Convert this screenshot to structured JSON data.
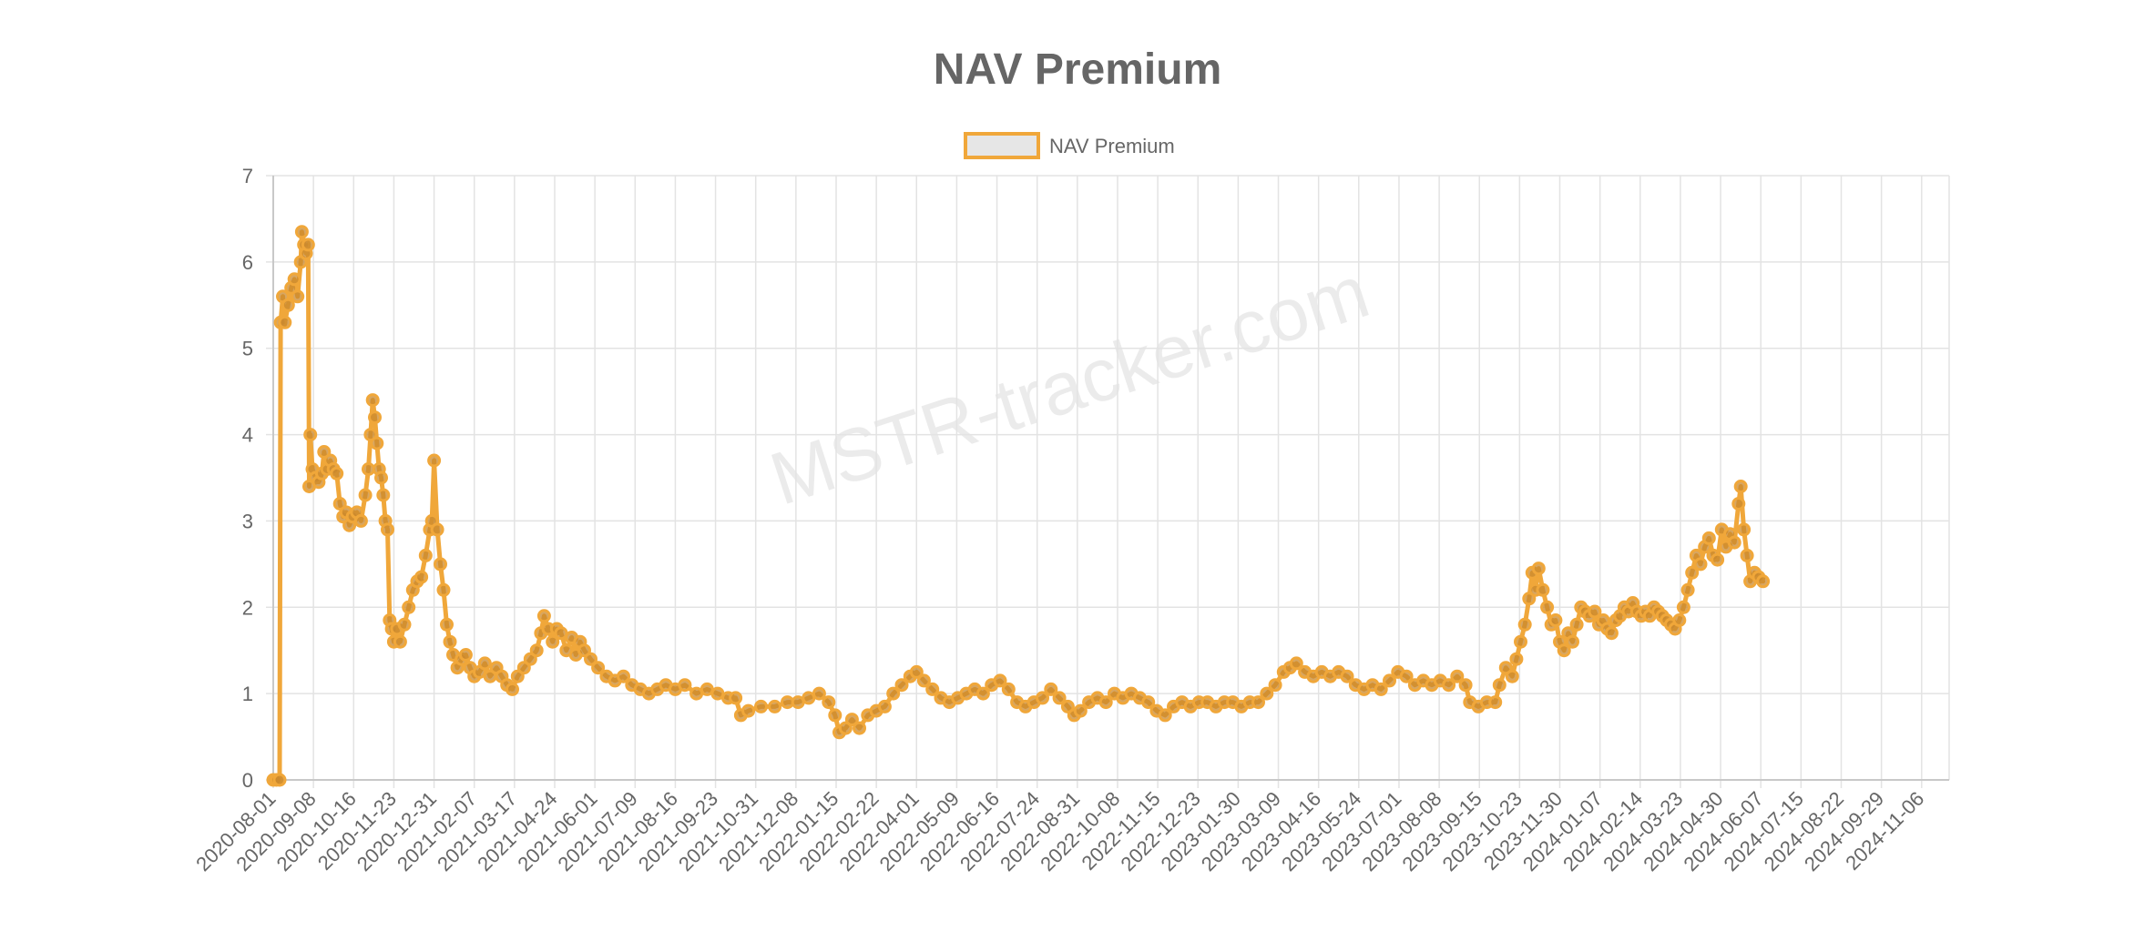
{
  "chart_data": {
    "type": "line",
    "title": "NAV Premium",
    "watermark": "MSTR-tracker.com",
    "legend": {
      "position": "top",
      "entries": [
        "NAV Premium"
      ]
    },
    "xlabel": "",
    "ylabel": "",
    "ylim": [
      0,
      7
    ],
    "y_ticks": [
      0,
      1,
      2,
      3,
      4,
      5,
      6,
      7
    ],
    "grid": true,
    "x_tick_labels": [
      "2020-08-01",
      "2020-09-08",
      "2020-10-16",
      "2020-11-23",
      "2020-12-31",
      "2021-02-07",
      "2021-03-17",
      "2021-04-24",
      "2021-06-01",
      "2021-07-09",
      "2021-08-16",
      "2021-09-23",
      "2021-10-31",
      "2021-12-08",
      "2022-01-15",
      "2022-02-22",
      "2022-04-01",
      "2022-05-09",
      "2022-06-16",
      "2022-07-24",
      "2022-08-31",
      "2022-10-08",
      "2022-11-15",
      "2022-12-23",
      "2023-01-30",
      "2023-03-09",
      "2023-04-16",
      "2023-05-24",
      "2023-07-01",
      "2023-08-08",
      "2023-09-15",
      "2023-10-23",
      "2023-11-30",
      "2024-01-07",
      "2024-02-14",
      "2024-03-23",
      "2024-04-30",
      "2024-06-07",
      "2024-07-15",
      "2024-08-22",
      "2024-09-29",
      "2024-11-06"
    ],
    "x_range": [
      "2020-08-01",
      "2024-12-02"
    ],
    "series": [
      {
        "name": "NAV Premium",
        "color": "#f0a73a",
        "fill": "#e6e6e6",
        "points": [
          [
            "2020-08-01",
            0.0
          ],
          [
            "2020-08-04",
            0.0
          ],
          [
            "2020-08-07",
            0.0
          ],
          [
            "2020-08-08",
            5.3
          ],
          [
            "2020-08-10",
            5.6
          ],
          [
            "2020-08-12",
            5.3
          ],
          [
            "2020-08-15",
            5.5
          ],
          [
            "2020-08-18",
            5.7
          ],
          [
            "2020-08-21",
            5.8
          ],
          [
            "2020-08-24",
            5.6
          ],
          [
            "2020-08-27",
            6.0
          ],
          [
            "2020-08-28",
            6.35
          ],
          [
            "2020-08-30",
            6.2
          ],
          [
            "2020-09-01",
            6.1
          ],
          [
            "2020-09-03",
            6.2
          ],
          [
            "2020-09-04",
            3.4
          ],
          [
            "2020-09-05",
            4.0
          ],
          [
            "2020-09-07",
            3.6
          ],
          [
            "2020-09-10",
            3.5
          ],
          [
            "2020-09-13",
            3.45
          ],
          [
            "2020-09-16",
            3.55
          ],
          [
            "2020-09-18",
            3.8
          ],
          [
            "2020-09-21",
            3.6
          ],
          [
            "2020-09-24",
            3.7
          ],
          [
            "2020-09-27",
            3.6
          ],
          [
            "2020-09-30",
            3.55
          ],
          [
            "2020-10-03",
            3.2
          ],
          [
            "2020-10-06",
            3.05
          ],
          [
            "2020-10-09",
            3.1
          ],
          [
            "2020-10-12",
            2.95
          ],
          [
            "2020-10-15",
            3.05
          ],
          [
            "2020-10-19",
            3.1
          ],
          [
            "2020-10-23",
            3.0
          ],
          [
            "2020-10-27",
            3.3
          ],
          [
            "2020-10-30",
            3.6
          ],
          [
            "2020-11-01",
            4.0
          ],
          [
            "2020-11-03",
            4.4
          ],
          [
            "2020-11-05",
            4.2
          ],
          [
            "2020-11-07",
            3.9
          ],
          [
            "2020-11-09",
            3.6
          ],
          [
            "2020-11-11",
            3.5
          ],
          [
            "2020-11-13",
            3.3
          ],
          [
            "2020-11-15",
            3.0
          ],
          [
            "2020-11-17",
            2.9
          ],
          [
            "2020-11-19",
            1.85
          ],
          [
            "2020-11-21",
            1.75
          ],
          [
            "2020-11-23",
            1.6
          ],
          [
            "2020-11-26",
            1.75
          ],
          [
            "2020-11-29",
            1.6
          ],
          [
            "2020-12-03",
            1.8
          ],
          [
            "2020-12-07",
            2.0
          ],
          [
            "2020-12-11",
            2.2
          ],
          [
            "2020-12-15",
            2.3
          ],
          [
            "2020-12-19",
            2.35
          ],
          [
            "2020-12-23",
            2.6
          ],
          [
            "2020-12-27",
            2.9
          ],
          [
            "2020-12-29",
            3.0
          ],
          [
            "2020-12-31",
            3.7
          ],
          [
            "2021-01-03",
            2.9
          ],
          [
            "2021-01-06",
            2.5
          ],
          [
            "2021-01-09",
            2.2
          ],
          [
            "2021-01-12",
            1.8
          ],
          [
            "2021-01-15",
            1.6
          ],
          [
            "2021-01-18",
            1.45
          ],
          [
            "2021-01-22",
            1.3
          ],
          [
            "2021-01-26",
            1.4
          ],
          [
            "2021-01-30",
            1.45
          ],
          [
            "2021-02-03",
            1.3
          ],
          [
            "2021-02-07",
            1.2
          ],
          [
            "2021-02-12",
            1.25
          ],
          [
            "2021-02-17",
            1.35
          ],
          [
            "2021-02-22",
            1.2
          ],
          [
            "2021-02-28",
            1.3
          ],
          [
            "2021-03-05",
            1.2
          ],
          [
            "2021-03-10",
            1.1
          ],
          [
            "2021-03-15",
            1.05
          ],
          [
            "2021-03-20",
            1.2
          ],
          [
            "2021-03-26",
            1.3
          ],
          [
            "2021-04-01",
            1.4
          ],
          [
            "2021-04-07",
            1.5
          ],
          [
            "2021-04-11",
            1.7
          ],
          [
            "2021-04-14",
            1.9
          ],
          [
            "2021-04-18",
            1.75
          ],
          [
            "2021-04-22",
            1.6
          ],
          [
            "2021-04-26",
            1.75
          ],
          [
            "2021-04-30",
            1.7
          ],
          [
            "2021-05-05",
            1.5
          ],
          [
            "2021-05-10",
            1.65
          ],
          [
            "2021-05-14",
            1.45
          ],
          [
            "2021-05-18",
            1.6
          ],
          [
            "2021-05-22",
            1.5
          ],
          [
            "2021-05-28",
            1.4
          ],
          [
            "2021-06-04",
            1.3
          ],
          [
            "2021-06-12",
            1.2
          ],
          [
            "2021-06-20",
            1.15
          ],
          [
            "2021-06-28",
            1.2
          ],
          [
            "2021-07-06",
            1.1
          ],
          [
            "2021-07-14",
            1.05
          ],
          [
            "2021-07-22",
            1.0
          ],
          [
            "2021-07-30",
            1.05
          ],
          [
            "2021-08-07",
            1.1
          ],
          [
            "2021-08-16",
            1.05
          ],
          [
            "2021-08-25",
            1.1
          ],
          [
            "2021-09-05",
            1.0
          ],
          [
            "2021-09-15",
            1.05
          ],
          [
            "2021-09-25",
            1.0
          ],
          [
            "2021-10-05",
            0.95
          ],
          [
            "2021-10-12",
            0.95
          ],
          [
            "2021-10-17",
            0.75
          ],
          [
            "2021-10-24",
            0.8
          ],
          [
            "2021-11-05",
            0.85
          ],
          [
            "2021-11-18",
            0.85
          ],
          [
            "2021-11-30",
            0.9
          ],
          [
            "2021-12-10",
            0.9
          ],
          [
            "2021-12-20",
            0.95
          ],
          [
            "2021-12-30",
            1.0
          ],
          [
            "2022-01-08",
            0.9
          ],
          [
            "2022-01-14",
            0.75
          ],
          [
            "2022-01-18",
            0.55
          ],
          [
            "2022-01-24",
            0.6
          ],
          [
            "2022-01-30",
            0.7
          ],
          [
            "2022-02-06",
            0.6
          ],
          [
            "2022-02-14",
            0.75
          ],
          [
            "2022-02-22",
            0.8
          ],
          [
            "2022-03-02",
            0.85
          ],
          [
            "2022-03-10",
            1.0
          ],
          [
            "2022-03-18",
            1.1
          ],
          [
            "2022-03-26",
            1.2
          ],
          [
            "2022-04-01",
            1.25
          ],
          [
            "2022-04-08",
            1.15
          ],
          [
            "2022-04-16",
            1.05
          ],
          [
            "2022-04-24",
            0.95
          ],
          [
            "2022-05-02",
            0.9
          ],
          [
            "2022-05-10",
            0.95
          ],
          [
            "2022-05-18",
            1.0
          ],
          [
            "2022-05-26",
            1.05
          ],
          [
            "2022-06-03",
            1.0
          ],
          [
            "2022-06-11",
            1.1
          ],
          [
            "2022-06-19",
            1.15
          ],
          [
            "2022-06-27",
            1.05
          ],
          [
            "2022-07-05",
            0.9
          ],
          [
            "2022-07-13",
            0.85
          ],
          [
            "2022-07-21",
            0.9
          ],
          [
            "2022-07-29",
            0.95
          ],
          [
            "2022-08-06",
            1.05
          ],
          [
            "2022-08-14",
            0.95
          ],
          [
            "2022-08-22",
            0.85
          ],
          [
            "2022-08-28",
            0.75
          ],
          [
            "2022-09-03",
            0.8
          ],
          [
            "2022-09-11",
            0.9
          ],
          [
            "2022-09-19",
            0.95
          ],
          [
            "2022-09-27",
            0.9
          ],
          [
            "2022-10-05",
            1.0
          ],
          [
            "2022-10-13",
            0.95
          ],
          [
            "2022-10-21",
            1.0
          ],
          [
            "2022-10-29",
            0.95
          ],
          [
            "2022-11-06",
            0.9
          ],
          [
            "2022-11-14",
            0.8
          ],
          [
            "2022-11-22",
            0.75
          ],
          [
            "2022-11-30",
            0.85
          ],
          [
            "2022-12-08",
            0.9
          ],
          [
            "2022-12-16",
            0.85
          ],
          [
            "2022-12-24",
            0.9
          ],
          [
            "2023-01-01",
            0.9
          ],
          [
            "2023-01-09",
            0.85
          ],
          [
            "2023-01-17",
            0.9
          ],
          [
            "2023-01-25",
            0.9
          ],
          [
            "2023-02-02",
            0.85
          ],
          [
            "2023-02-10",
            0.9
          ],
          [
            "2023-02-18",
            0.9
          ],
          [
            "2023-02-26",
            1.0
          ],
          [
            "2023-03-06",
            1.1
          ],
          [
            "2023-03-14",
            1.25
          ],
          [
            "2023-03-20",
            1.3
          ],
          [
            "2023-03-26",
            1.35
          ],
          [
            "2023-04-03",
            1.25
          ],
          [
            "2023-04-11",
            1.2
          ],
          [
            "2023-04-19",
            1.25
          ],
          [
            "2023-04-27",
            1.2
          ],
          [
            "2023-05-05",
            1.25
          ],
          [
            "2023-05-13",
            1.2
          ],
          [
            "2023-05-21",
            1.1
          ],
          [
            "2023-05-29",
            1.05
          ],
          [
            "2023-06-06",
            1.1
          ],
          [
            "2023-06-14",
            1.05
          ],
          [
            "2023-06-22",
            1.15
          ],
          [
            "2023-06-30",
            1.25
          ],
          [
            "2023-07-08",
            1.2
          ],
          [
            "2023-07-16",
            1.1
          ],
          [
            "2023-07-24",
            1.15
          ],
          [
            "2023-08-01",
            1.1
          ],
          [
            "2023-08-09",
            1.15
          ],
          [
            "2023-08-17",
            1.1
          ],
          [
            "2023-08-25",
            1.2
          ],
          [
            "2023-09-02",
            1.1
          ],
          [
            "2023-09-06",
            0.9
          ],
          [
            "2023-09-14",
            0.85
          ],
          [
            "2023-09-22",
            0.9
          ],
          [
            "2023-09-30",
            0.9
          ],
          [
            "2023-10-04",
            1.1
          ],
          [
            "2023-10-10",
            1.3
          ],
          [
            "2023-10-16",
            1.2
          ],
          [
            "2023-10-20",
            1.4
          ],
          [
            "2023-10-24",
            1.6
          ],
          [
            "2023-10-28",
            1.8
          ],
          [
            "2023-11-01",
            2.1
          ],
          [
            "2023-11-04",
            2.4
          ],
          [
            "2023-11-07",
            2.2
          ],
          [
            "2023-11-10",
            2.45
          ],
          [
            "2023-11-14",
            2.2
          ],
          [
            "2023-11-18",
            2.0
          ],
          [
            "2023-11-22",
            1.8
          ],
          [
            "2023-11-26",
            1.85
          ],
          [
            "2023-11-30",
            1.6
          ],
          [
            "2023-12-04",
            1.5
          ],
          [
            "2023-12-08",
            1.7
          ],
          [
            "2023-12-12",
            1.6
          ],
          [
            "2023-12-16",
            1.8
          ],
          [
            "2023-12-20",
            2.0
          ],
          [
            "2023-12-24",
            1.95
          ],
          [
            "2023-12-28",
            1.9
          ],
          [
            "2024-01-02",
            1.95
          ],
          [
            "2024-01-06",
            1.8
          ],
          [
            "2024-01-10",
            1.85
          ],
          [
            "2024-01-14",
            1.75
          ],
          [
            "2024-01-18",
            1.7
          ],
          [
            "2024-01-22",
            1.85
          ],
          [
            "2024-01-26",
            1.9
          ],
          [
            "2024-01-30",
            2.0
          ],
          [
            "2024-02-03",
            1.95
          ],
          [
            "2024-02-07",
            2.05
          ],
          [
            "2024-02-11",
            1.95
          ],
          [
            "2024-02-15",
            1.9
          ],
          [
            "2024-02-19",
            1.95
          ],
          [
            "2024-02-23",
            1.9
          ],
          [
            "2024-02-27",
            2.0
          ],
          [
            "2024-03-02",
            1.95
          ],
          [
            "2024-03-06",
            1.9
          ],
          [
            "2024-03-10",
            1.85
          ],
          [
            "2024-03-14",
            1.8
          ],
          [
            "2024-03-18",
            1.75
          ],
          [
            "2024-03-22",
            1.85
          ],
          [
            "2024-03-26",
            2.0
          ],
          [
            "2024-03-30",
            2.2
          ],
          [
            "2024-04-03",
            2.4
          ],
          [
            "2024-04-07",
            2.6
          ],
          [
            "2024-04-11",
            2.5
          ],
          [
            "2024-04-15",
            2.7
          ],
          [
            "2024-04-19",
            2.8
          ],
          [
            "2024-04-23",
            2.6
          ],
          [
            "2024-04-27",
            2.55
          ],
          [
            "2024-05-01",
            2.9
          ],
          [
            "2024-05-05",
            2.7
          ],
          [
            "2024-05-09",
            2.85
          ],
          [
            "2024-05-13",
            2.75
          ],
          [
            "2024-05-17",
            3.2
          ],
          [
            "2024-05-19",
            3.4
          ],
          [
            "2024-05-22",
            2.9
          ],
          [
            "2024-05-25",
            2.6
          ],
          [
            "2024-05-28",
            2.3
          ],
          [
            "2024-06-01",
            2.4
          ],
          [
            "2024-06-05",
            2.35
          ],
          [
            "2024-06-09",
            2.3
          ]
        ]
      }
    ]
  }
}
